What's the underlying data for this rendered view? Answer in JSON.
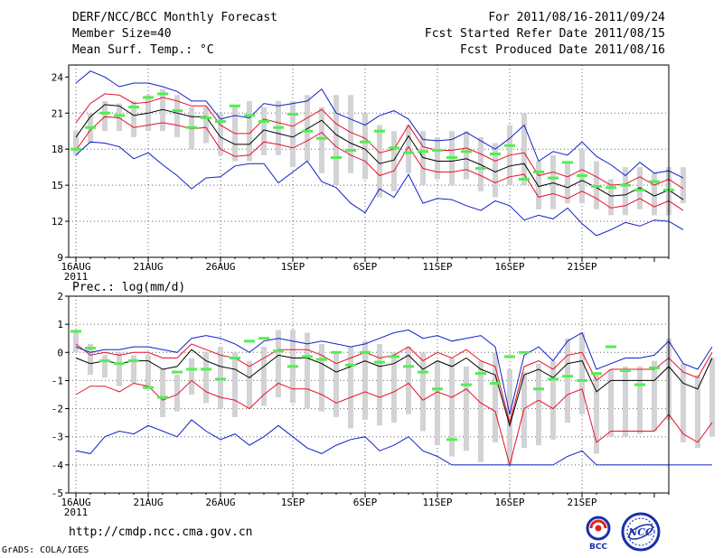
{
  "header": {
    "title": "DERF/NCC/BCC Monthly Forecast",
    "member_size": "Member Size=40",
    "variable": "Mean Surf. Temp.: °C",
    "period": "For 2011/08/16-2011/09/24",
    "refer_date": "Fcst Started Refer Date 2011/08/15",
    "produced_date": "Fcst Produced Date 2011/08/16"
  },
  "footer": {
    "url": "http://cmdp.ncc.cma.gov.cn",
    "credit": "GrADS: COLA/IGES",
    "logo_left": "BCC",
    "logo_right": "NCC"
  },
  "colors": {
    "mean": "#000000",
    "red_band": "#e8102a",
    "blue_band": "#1020c8",
    "bars": "#d3d3d6",
    "marker": "#52ee52",
    "grid": "#666666"
  },
  "chart_data": [
    {
      "type": "line",
      "title": "Mean Surf. Temp.: °C",
      "x_ticks": [
        "16AUG",
        "21AUG",
        "26AUG",
        "1SEP",
        "6SEP",
        "11SEP",
        "16SEP",
        "21SEP"
      ],
      "x_year": "2011",
      "ylim": [
        9,
        25
      ],
      "y_ticks": [
        "9",
        "12",
        "15",
        "18",
        "21",
        "24"
      ],
      "y_tick_values": [
        9,
        12,
        15,
        18,
        21,
        24
      ],
      "days": 40,
      "series": [
        {
          "name": "mean",
          "values": [
            19.0,
            20.7,
            21.7,
            21.6,
            20.8,
            21.0,
            21.3,
            21.0,
            20.7,
            20.7,
            19.0,
            18.4,
            18.4,
            19.6,
            19.3,
            19.0,
            19.7,
            20.4,
            19.2,
            18.5,
            18.0,
            16.8,
            17.1,
            19.1,
            17.3,
            17.0,
            17.0,
            17.2,
            16.7,
            16.1,
            16.6,
            16.8,
            14.9,
            15.2,
            14.8,
            15.4,
            14.8,
            14.1,
            14.2,
            14.8,
            14.1,
            14.6,
            13.8
          ]
        },
        {
          "name": "red_upper",
          "values": [
            20.2,
            21.8,
            22.6,
            22.5,
            21.8,
            21.9,
            22.3,
            22.0,
            21.6,
            21.6,
            20.0,
            19.3,
            19.3,
            20.5,
            20.2,
            19.9,
            20.6,
            21.3,
            20.1,
            19.4,
            18.9,
            17.7,
            18.0,
            20.0,
            18.2,
            17.9,
            17.9,
            18.1,
            17.6,
            17.0,
            17.5,
            17.7,
            15.8,
            16.1,
            15.7,
            16.3,
            15.7,
            15.0,
            15.1,
            15.7,
            15.0,
            15.5,
            14.7
          ]
        },
        {
          "name": "red_lower",
          "values": [
            17.9,
            19.6,
            20.7,
            20.6,
            19.8,
            20.0,
            20.2,
            20.0,
            19.7,
            19.8,
            18.0,
            17.4,
            17.5,
            18.6,
            18.4,
            18.1,
            18.7,
            19.4,
            18.2,
            17.5,
            17.0,
            15.8,
            16.2,
            18.2,
            16.4,
            16.1,
            16.1,
            16.3,
            15.8,
            15.2,
            15.7,
            15.9,
            14.0,
            14.3,
            13.9,
            14.5,
            13.9,
            13.1,
            13.3,
            13.9,
            13.2,
            13.7,
            12.9
          ]
        },
        {
          "name": "blue_upper",
          "values": [
            23.5,
            24.5,
            24.0,
            23.2,
            23.5,
            23.5,
            23.2,
            22.8,
            22.0,
            22.0,
            20.5,
            20.8,
            20.6,
            21.8,
            21.6,
            21.8,
            22.0,
            23.0,
            21.0,
            20.5,
            20.0,
            20.8,
            21.2,
            20.5,
            18.8,
            18.7,
            18.8,
            19.4,
            18.7,
            18.0,
            18.9,
            20.0,
            17.0,
            17.8,
            17.5,
            18.6,
            17.4,
            16.7,
            15.8,
            16.9,
            16.0,
            16.2,
            15.6
          ]
        },
        {
          "name": "blue_lower",
          "values": [
            17.5,
            18.6,
            18.5,
            18.2,
            17.2,
            17.7,
            16.7,
            15.8,
            14.7,
            15.6,
            15.7,
            16.6,
            16.8,
            16.8,
            15.2,
            16.1,
            17.0,
            15.3,
            14.8,
            13.5,
            12.7,
            14.7,
            14.0,
            15.9,
            13.5,
            13.9,
            13.8,
            13.3,
            12.9,
            13.7,
            13.3,
            12.1,
            12.5,
            12.2,
            13.1,
            11.8,
            10.8,
            11.3,
            11.9,
            11.6,
            12.1,
            12.0,
            11.3
          ]
        }
      ],
      "markers": [
        18.0,
        19.8,
        21.0,
        20.8,
        21.5,
        22.3,
        22.6,
        21.2,
        19.8,
        20.6,
        20.3,
        21.6,
        20.8,
        20.3,
        19.8,
        20.9,
        19.5,
        18.9,
        17.3,
        17.9,
        18.6,
        19.5,
        18.1,
        17.7,
        17.8,
        17.9,
        17.3,
        17.8,
        16.4,
        17.6,
        18.3,
        15.5,
        16.1,
        15.6,
        16.9,
        15.8,
        14.9,
        14.8,
        15.0,
        14.6,
        15.3,
        14.6
      ],
      "bars": [
        [
          17.5,
          19.5
        ],
        [
          18.5,
          21.0
        ],
        [
          19.5,
          22.0
        ],
        [
          19.5,
          21.8
        ],
        [
          19.0,
          22.0
        ],
        [
          19.5,
          22.5
        ],
        [
          19.5,
          23.0
        ],
        [
          19.0,
          22.5
        ],
        [
          18.0,
          21.5
        ],
        [
          18.5,
          21.5
        ],
        [
          17.5,
          21.0
        ],
        [
          17.0,
          21.5
        ],
        [
          17.0,
          22.0
        ],
        [
          17.5,
          21.5
        ],
        [
          17.5,
          22.0
        ],
        [
          16.5,
          22.0
        ],
        [
          17.0,
          22.5
        ],
        [
          16.0,
          21.5
        ],
        [
          15.0,
          22.5
        ],
        [
          16.0,
          22.5
        ],
        [
          15.5,
          21.0
        ],
        [
          14.0,
          20.0
        ],
        [
          14.5,
          19.5
        ],
        [
          16.0,
          20.0
        ],
        [
          15.0,
          19.5
        ],
        [
          15.5,
          19.0
        ],
        [
          15.0,
          19.5
        ],
        [
          15.5,
          19.5
        ],
        [
          14.5,
          19.0
        ],
        [
          14.0,
          18.5
        ],
        [
          15.0,
          20.0
        ],
        [
          15.0,
          21.0
        ],
        [
          13.0,
          17.0
        ],
        [
          13.0,
          17.5
        ],
        [
          13.5,
          17.0
        ],
        [
          13.5,
          18.0
        ],
        [
          13.0,
          17.0
        ],
        [
          12.5,
          15.5
        ],
        [
          12.5,
          16.5
        ],
        [
          13.0,
          16.5
        ],
        [
          12.5,
          16.0
        ],
        [
          12.5,
          16.5
        ],
        [
          13.5,
          16.5
        ]
      ]
    },
    {
      "type": "line",
      "title": "Prec.: log(mm/d)",
      "x_ticks": [
        "16AUG",
        "21AUG",
        "26AUG",
        "1SEP",
        "6SEP",
        "11SEP",
        "16SEP",
        "21SEP"
      ],
      "x_year": "2011",
      "ylim": [
        -5,
        2
      ],
      "y_ticks": [
        "-5",
        "-4",
        "-3",
        "-2",
        "-1",
        "0",
        "1",
        "2"
      ],
      "y_tick_values": [
        -5,
        -4,
        -3,
        -2,
        -1,
        0,
        1,
        2
      ],
      "days": 40,
      "series": [
        {
          "name": "mean",
          "values": [
            -0.2,
            -0.4,
            -0.3,
            -0.4,
            -0.3,
            -0.3,
            -0.6,
            -0.5,
            0.1,
            -0.3,
            -0.5,
            -0.6,
            -0.9,
            -0.5,
            -0.1,
            -0.2,
            -0.2,
            -0.4,
            -0.7,
            -0.5,
            -0.3,
            -0.5,
            -0.4,
            -0.1,
            -0.6,
            -0.3,
            -0.5,
            -0.2,
            -0.6,
            -0.8,
            -2.6,
            -0.8,
            -0.6,
            -0.9,
            -0.4,
            -0.3,
            -1.4,
            -1.0,
            -1.0,
            -1.0,
            -1.0,
            -0.5,
            -1.1,
            -1.3,
            -0.2
          ]
        },
        {
          "name": "red_upper",
          "values": [
            0.3,
            -0.1,
            0.0,
            -0.1,
            0.0,
            0.0,
            -0.2,
            -0.2,
            0.3,
            0.1,
            -0.1,
            -0.2,
            -0.5,
            -0.2,
            0.1,
            0.1,
            0.1,
            -0.1,
            -0.4,
            -0.2,
            0.0,
            -0.2,
            -0.1,
            0.2,
            -0.3,
            0.0,
            -0.2,
            0.1,
            -0.3,
            -0.5,
            -2.5,
            -0.5,
            -0.3,
            -0.6,
            -0.1,
            0.0,
            -1.0,
            -0.6,
            -0.6,
            -0.6,
            -0.6,
            -0.2,
            -0.7,
            -0.9,
            0.0
          ]
        },
        {
          "name": "red_lower",
          "values": [
            -1.5,
            -1.2,
            -1.2,
            -1.4,
            -1.1,
            -1.2,
            -1.7,
            -1.5,
            -1.0,
            -1.4,
            -1.6,
            -1.7,
            -2.0,
            -1.5,
            -1.1,
            -1.3,
            -1.3,
            -1.5,
            -1.8,
            -1.6,
            -1.4,
            -1.6,
            -1.4,
            -1.1,
            -1.7,
            -1.4,
            -1.6,
            -1.3,
            -1.8,
            -2.1,
            -4.0,
            -2.0,
            -1.7,
            -2.0,
            -1.5,
            -1.3,
            -3.2,
            -2.8,
            -2.8,
            -2.8,
            -2.8,
            -2.2,
            -2.9,
            -3.2,
            -2.5
          ]
        },
        {
          "name": "blue_upper",
          "values": [
            0.2,
            0.0,
            0.1,
            0.1,
            0.2,
            0.2,
            0.1,
            0.0,
            0.5,
            0.6,
            0.5,
            0.3,
            0.0,
            0.4,
            0.5,
            0.4,
            0.3,
            0.4,
            0.3,
            0.2,
            0.3,
            0.5,
            0.7,
            0.8,
            0.5,
            0.6,
            0.4,
            0.5,
            0.6,
            0.2,
            -2.2,
            -0.1,
            0.2,
            -0.3,
            0.4,
            0.7,
            -0.6,
            -0.4,
            -0.2,
            -0.2,
            -0.1,
            0.4,
            -0.4,
            -0.6,
            0.2
          ]
        },
        {
          "name": "blue_lower",
          "values": [
            -3.5,
            -3.6,
            -3.0,
            -2.8,
            -2.9,
            -2.6,
            -2.8,
            -3.0,
            -2.4,
            -2.8,
            -3.1,
            -2.9,
            -3.3,
            -3.0,
            -2.6,
            -3.0,
            -3.4,
            -3.6,
            -3.3,
            -3.1,
            -3.0,
            -3.5,
            -3.3,
            -3.0,
            -3.5,
            -3.7,
            -4.0,
            -4.0,
            -4.0,
            -4.0,
            -4.0,
            -4.0,
            -4.0,
            -4.0,
            -3.7,
            -3.5,
            -4.0,
            -4.0,
            -4.0,
            -4.0,
            -4.0,
            -4.0,
            -4.0,
            -4.0,
            -4.0
          ]
        }
      ],
      "markers": [
        0.75,
        0.15,
        -0.3,
        -0.4,
        -0.3,
        -1.25,
        -1.6,
        -0.7,
        -0.6,
        -0.6,
        -0.95,
        -0.2,
        0.4,
        0.5,
        0.05,
        -0.5,
        -0.15,
        -0.25,
        0.0,
        -0.45,
        0.0,
        -0.35,
        -0.15,
        -0.5,
        -0.7,
        -1.3,
        -3.1,
        -1.15,
        -0.75,
        -1.1,
        -0.15,
        0.0,
        -1.3,
        -0.95,
        -0.85,
        -1.0,
        -0.75,
        0.2,
        -0.65,
        -1.15,
        -0.55
      ],
      "bars": [
        [
          0.0,
          0.7
        ],
        [
          -0.8,
          0.3
        ],
        [
          -0.9,
          -0.1
        ],
        [
          -1.2,
          0.0
        ],
        [
          -1.1,
          -0.1
        ],
        [
          -1.3,
          -0.1
        ],
        [
          -2.3,
          -0.6
        ],
        [
          -2.1,
          -0.8
        ],
        [
          -1.5,
          -0.2
        ],
        [
          -1.8,
          0.0
        ],
        [
          -2.0,
          0.2
        ],
        [
          -2.3,
          0.0
        ],
        [
          -2.0,
          -0.3
        ],
        [
          -1.9,
          0.2
        ],
        [
          -1.6,
          0.8
        ],
        [
          -1.8,
          0.8
        ],
        [
          -2.0,
          0.7
        ],
        [
          -2.1,
          0.3
        ],
        [
          -2.3,
          0.0
        ],
        [
          -2.7,
          0.2
        ],
        [
          -2.4,
          0.4
        ],
        [
          -2.6,
          0.3
        ],
        [
          -2.5,
          0.0
        ],
        [
          -2.2,
          0.2
        ],
        [
          -2.8,
          0.0
        ],
        [
          -3.3,
          -0.3
        ],
        [
          -3.7,
          -0.2
        ],
        [
          -3.5,
          -0.5
        ],
        [
          -3.9,
          -0.3
        ],
        [
          -3.2,
          0.0
        ],
        [
          -4.0,
          -0.6
        ],
        [
          -3.4,
          -0.7
        ],
        [
          -3.3,
          -0.4
        ],
        [
          -3.1,
          -0.3
        ],
        [
          -2.5,
          0.5
        ],
        [
          -2.2,
          0.7
        ],
        [
          -3.6,
          -0.8
        ],
        [
          -3.0,
          -0.6
        ],
        [
          -3.0,
          -0.5
        ],
        [
          -2.9,
          -0.5
        ],
        [
          -2.8,
          -0.3
        ],
        [
          -2.4,
          0.5
        ],
        [
          -3.2,
          -0.4
        ],
        [
          -3.4,
          -0.8
        ],
        [
          -3.0,
          -0.2
        ]
      ]
    }
  ]
}
